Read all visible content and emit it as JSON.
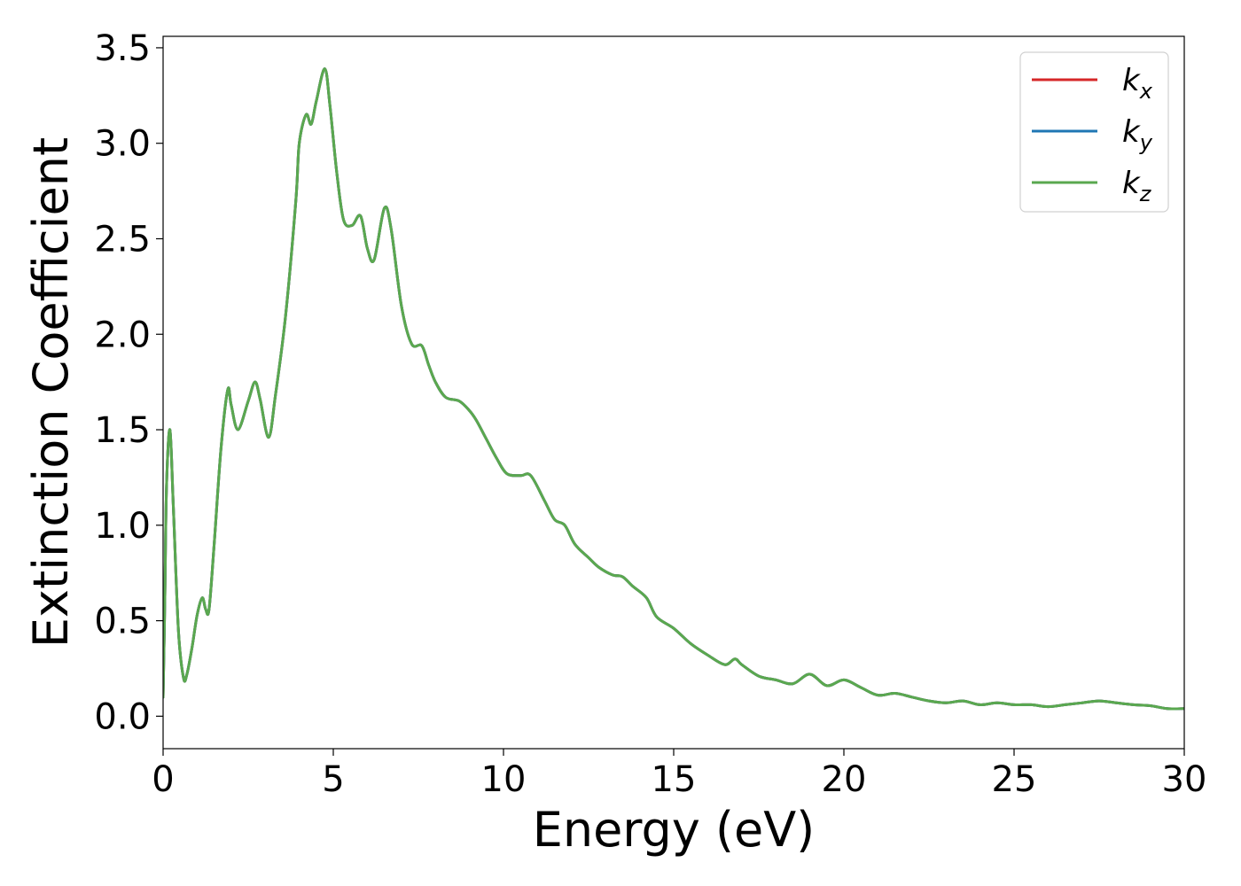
{
  "chart_data": {
    "type": "line",
    "title": "",
    "xlabel": "Energy (eV)",
    "ylabel": "Extinction Coefficient",
    "xlim": [
      0,
      30
    ],
    "ylim": [
      -0.17,
      3.56
    ],
    "xticks": [
      0,
      5,
      10,
      15,
      20,
      25,
      30
    ],
    "xtick_labels": [
      "0",
      "5",
      "10",
      "15",
      "20",
      "25",
      "30"
    ],
    "yticks": [
      0.0,
      0.5,
      1.0,
      1.5,
      2.0,
      2.5,
      3.0,
      3.5
    ],
    "ytick_labels": [
      "0.0",
      "0.5",
      "1.0",
      "1.5",
      "2.0",
      "2.5",
      "3.0",
      "3.5"
    ],
    "grid": false,
    "legend_position": "top-right",
    "legend": [
      {
        "base": "k",
        "sub": "x",
        "color": "#d62728"
      },
      {
        "base": "k",
        "sub": "y",
        "color": "#1f77b4"
      },
      {
        "base": "k",
        "sub": "z",
        "color": "#5aa84f"
      }
    ],
    "x": [
      0,
      0.05,
      0.1,
      0.2,
      0.3,
      0.45,
      0.6,
      0.7,
      0.85,
      1.0,
      1.15,
      1.25,
      1.35,
      1.5,
      1.7,
      1.9,
      2.0,
      2.2,
      2.5,
      2.7,
      2.85,
      3.1,
      3.3,
      3.6,
      3.9,
      4.0,
      4.2,
      4.35,
      4.5,
      4.75,
      4.9,
      5.1,
      5.3,
      5.55,
      5.8,
      6.0,
      6.2,
      6.5,
      6.7,
      7.0,
      7.3,
      7.6,
      7.8,
      8.0,
      8.3,
      8.7,
      9.0,
      9.2,
      9.5,
      9.8,
      10.1,
      10.5,
      10.8,
      11.2,
      11.5,
      11.8,
      12.1,
      12.5,
      12.8,
      13.2,
      13.5,
      13.8,
      14.2,
      14.5,
      15.0,
      15.5,
      16.0,
      16.5,
      16.8,
      17.0,
      17.5,
      18.0,
      18.5,
      19.0,
      19.5,
      20.0,
      20.5,
      21.0,
      21.5,
      22.0,
      22.5,
      23.0,
      23.5,
      24.0,
      24.5,
      25.0,
      25.5,
      26.0,
      26.5,
      27.0,
      27.5,
      28.0,
      28.5,
      29.0,
      29.5,
      30.0
    ],
    "series": [
      {
        "name": "k_x",
        "color": "#d62728",
        "values": [
          0.1,
          0.6,
          1.2,
          1.5,
          1.1,
          0.45,
          0.2,
          0.22,
          0.36,
          0.53,
          0.62,
          0.56,
          0.56,
          0.9,
          1.4,
          1.71,
          1.63,
          1.5,
          1.65,
          1.75,
          1.66,
          1.46,
          1.68,
          2.1,
          2.7,
          3.0,
          3.15,
          3.1,
          3.22,
          3.39,
          3.2,
          2.85,
          2.6,
          2.57,
          2.62,
          2.45,
          2.39,
          2.66,
          2.55,
          2.15,
          1.95,
          1.94,
          1.84,
          1.75,
          1.67,
          1.65,
          1.6,
          1.55,
          1.45,
          1.35,
          1.27,
          1.26,
          1.26,
          1.13,
          1.03,
          1.0,
          0.9,
          0.83,
          0.78,
          0.74,
          0.73,
          0.68,
          0.62,
          0.52,
          0.46,
          0.38,
          0.32,
          0.27,
          0.3,
          0.27,
          0.21,
          0.19,
          0.17,
          0.22,
          0.16,
          0.19,
          0.15,
          0.11,
          0.12,
          0.1,
          0.08,
          0.07,
          0.08,
          0.06,
          0.07,
          0.06,
          0.06,
          0.05,
          0.06,
          0.07,
          0.08,
          0.07,
          0.06,
          0.055,
          0.04,
          0.04
        ]
      },
      {
        "name": "k_y",
        "color": "#1f77b4",
        "values": [
          0.1,
          0.6,
          1.2,
          1.5,
          1.1,
          0.45,
          0.2,
          0.22,
          0.36,
          0.53,
          0.62,
          0.56,
          0.56,
          0.9,
          1.4,
          1.71,
          1.63,
          1.5,
          1.65,
          1.75,
          1.66,
          1.46,
          1.68,
          2.1,
          2.7,
          3.0,
          3.15,
          3.1,
          3.22,
          3.39,
          3.2,
          2.85,
          2.6,
          2.57,
          2.62,
          2.45,
          2.39,
          2.66,
          2.55,
          2.15,
          1.95,
          1.94,
          1.84,
          1.75,
          1.67,
          1.65,
          1.6,
          1.55,
          1.45,
          1.35,
          1.27,
          1.26,
          1.26,
          1.13,
          1.03,
          1.0,
          0.9,
          0.83,
          0.78,
          0.74,
          0.73,
          0.68,
          0.62,
          0.52,
          0.46,
          0.38,
          0.32,
          0.27,
          0.3,
          0.27,
          0.21,
          0.19,
          0.17,
          0.22,
          0.16,
          0.19,
          0.15,
          0.11,
          0.12,
          0.1,
          0.08,
          0.07,
          0.08,
          0.06,
          0.07,
          0.06,
          0.06,
          0.05,
          0.06,
          0.07,
          0.08,
          0.07,
          0.06,
          0.055,
          0.04,
          0.04
        ]
      },
      {
        "name": "k_z",
        "color": "#5aa84f",
        "values": [
          0.1,
          0.6,
          1.2,
          1.5,
          1.1,
          0.45,
          0.2,
          0.22,
          0.36,
          0.53,
          0.62,
          0.56,
          0.56,
          0.9,
          1.4,
          1.71,
          1.63,
          1.5,
          1.65,
          1.75,
          1.66,
          1.46,
          1.68,
          2.1,
          2.7,
          3.0,
          3.15,
          3.1,
          3.22,
          3.39,
          3.2,
          2.85,
          2.6,
          2.57,
          2.62,
          2.45,
          2.39,
          2.66,
          2.55,
          2.15,
          1.95,
          1.94,
          1.84,
          1.75,
          1.67,
          1.65,
          1.6,
          1.55,
          1.45,
          1.35,
          1.27,
          1.26,
          1.26,
          1.13,
          1.03,
          1.0,
          0.9,
          0.83,
          0.78,
          0.74,
          0.73,
          0.68,
          0.62,
          0.52,
          0.46,
          0.38,
          0.32,
          0.27,
          0.3,
          0.27,
          0.21,
          0.19,
          0.17,
          0.22,
          0.16,
          0.19,
          0.15,
          0.11,
          0.12,
          0.1,
          0.08,
          0.07,
          0.08,
          0.06,
          0.07,
          0.06,
          0.06,
          0.05,
          0.06,
          0.07,
          0.08,
          0.07,
          0.06,
          0.055,
          0.04,
          0.04
        ]
      }
    ]
  }
}
